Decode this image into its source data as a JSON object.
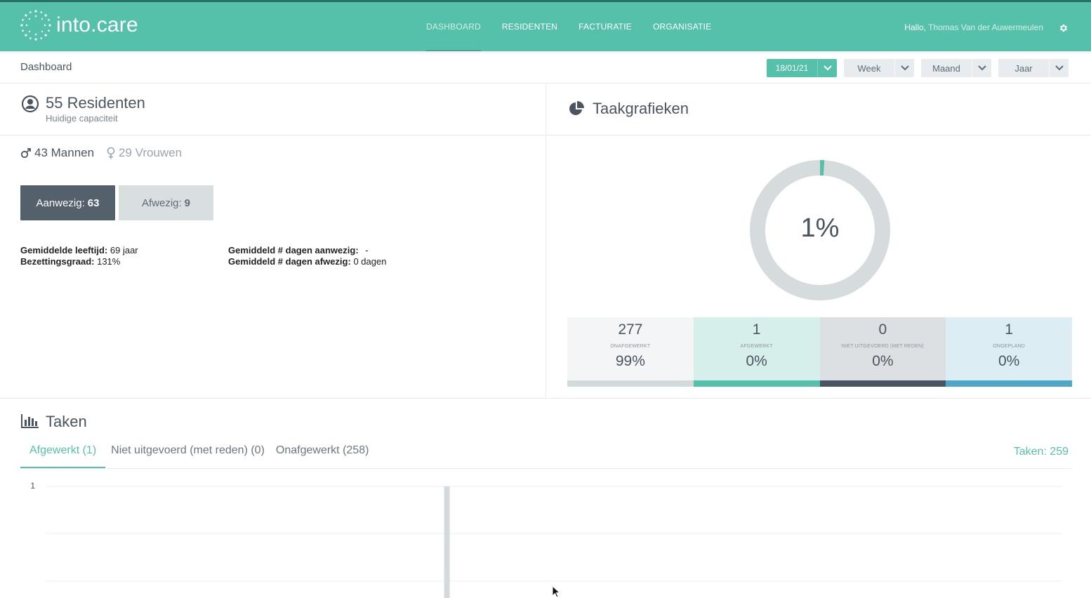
{
  "header": {
    "logo_text": "into.care",
    "nav": [
      {
        "label": "DASHBOARD",
        "active": true
      },
      {
        "label": "RESIDENTEN",
        "active": false
      },
      {
        "label": "FACTURATIE",
        "active": false
      },
      {
        "label": "ORGANISATIE",
        "active": false
      }
    ],
    "greeting": "Hallo,",
    "user_name": "Thomas Van der Auwermeulen",
    "settings_icon": "gear-icon"
  },
  "subbar": {
    "breadcrumb": "Dashboard",
    "date_select": "18/01/21",
    "week_select": "Week",
    "month_select": "Maand",
    "year_select": "Jaar"
  },
  "residents": {
    "title": "55 Residenten",
    "subtitle": "Huidige capaciteit",
    "men": "43 Mannen",
    "women": "29 Vrouwen",
    "present_label": "Aanwezig:",
    "present_value": "63",
    "absent_label": "Afwezig:",
    "absent_value": "9",
    "avg_age_label": "Gemiddelde leeftijd:",
    "avg_age_value": "69 jaar",
    "occupancy_label": "Bezettingsgraad:",
    "occupancy_value": "131%",
    "avg_days_present_label": "Gemiddeld # dagen aanwezig:",
    "avg_days_present_value": "-",
    "avg_days_absent_label": "Gemiddeld # dagen afwezig:",
    "avg_days_absent_value": "0 dagen"
  },
  "task_charts": {
    "title": "Taakgrafieken",
    "donut_percent": "1%",
    "donut_fraction": 0.01,
    "tiles": [
      {
        "count": "277",
        "label": "ONAFGEWERKT",
        "percent": "99%",
        "bg": "#f4f5f7",
        "bar": "#d3dadb"
      },
      {
        "count": "1",
        "label": "AFGEWERKT",
        "percent": "0%",
        "bg": "#d6efea",
        "bar": "#55c1aa"
      },
      {
        "count": "0",
        "label": "NIET UITGEVOERD (MET REDEN)",
        "percent": "0%",
        "bg": "#dde0e3",
        "bar": "#4a5562"
      },
      {
        "count": "1",
        "label": "ONGEPLAND",
        "percent": "0%",
        "bg": "#dcedf3",
        "bar": "#4ea6c9"
      }
    ]
  },
  "tasks": {
    "title": "Taken",
    "tabs": [
      {
        "label": "Afgewerkt (1)",
        "active": true
      },
      {
        "label": "Niet uitgevoerd (met reden) (0)",
        "active": false
      },
      {
        "label": "Onafgewerkt (258)",
        "active": false
      }
    ],
    "total": "Taken: 259"
  },
  "chart_data": {
    "type": "bar",
    "ylim": [
      0,
      1
    ],
    "ytick_labels": [
      "1"
    ],
    "grid": true,
    "bars": [
      {
        "fraction_of_x": 0.395,
        "value": 1
      }
    ]
  },
  "colors": {
    "accent": "#55c1aa",
    "dark": "#54606c"
  }
}
